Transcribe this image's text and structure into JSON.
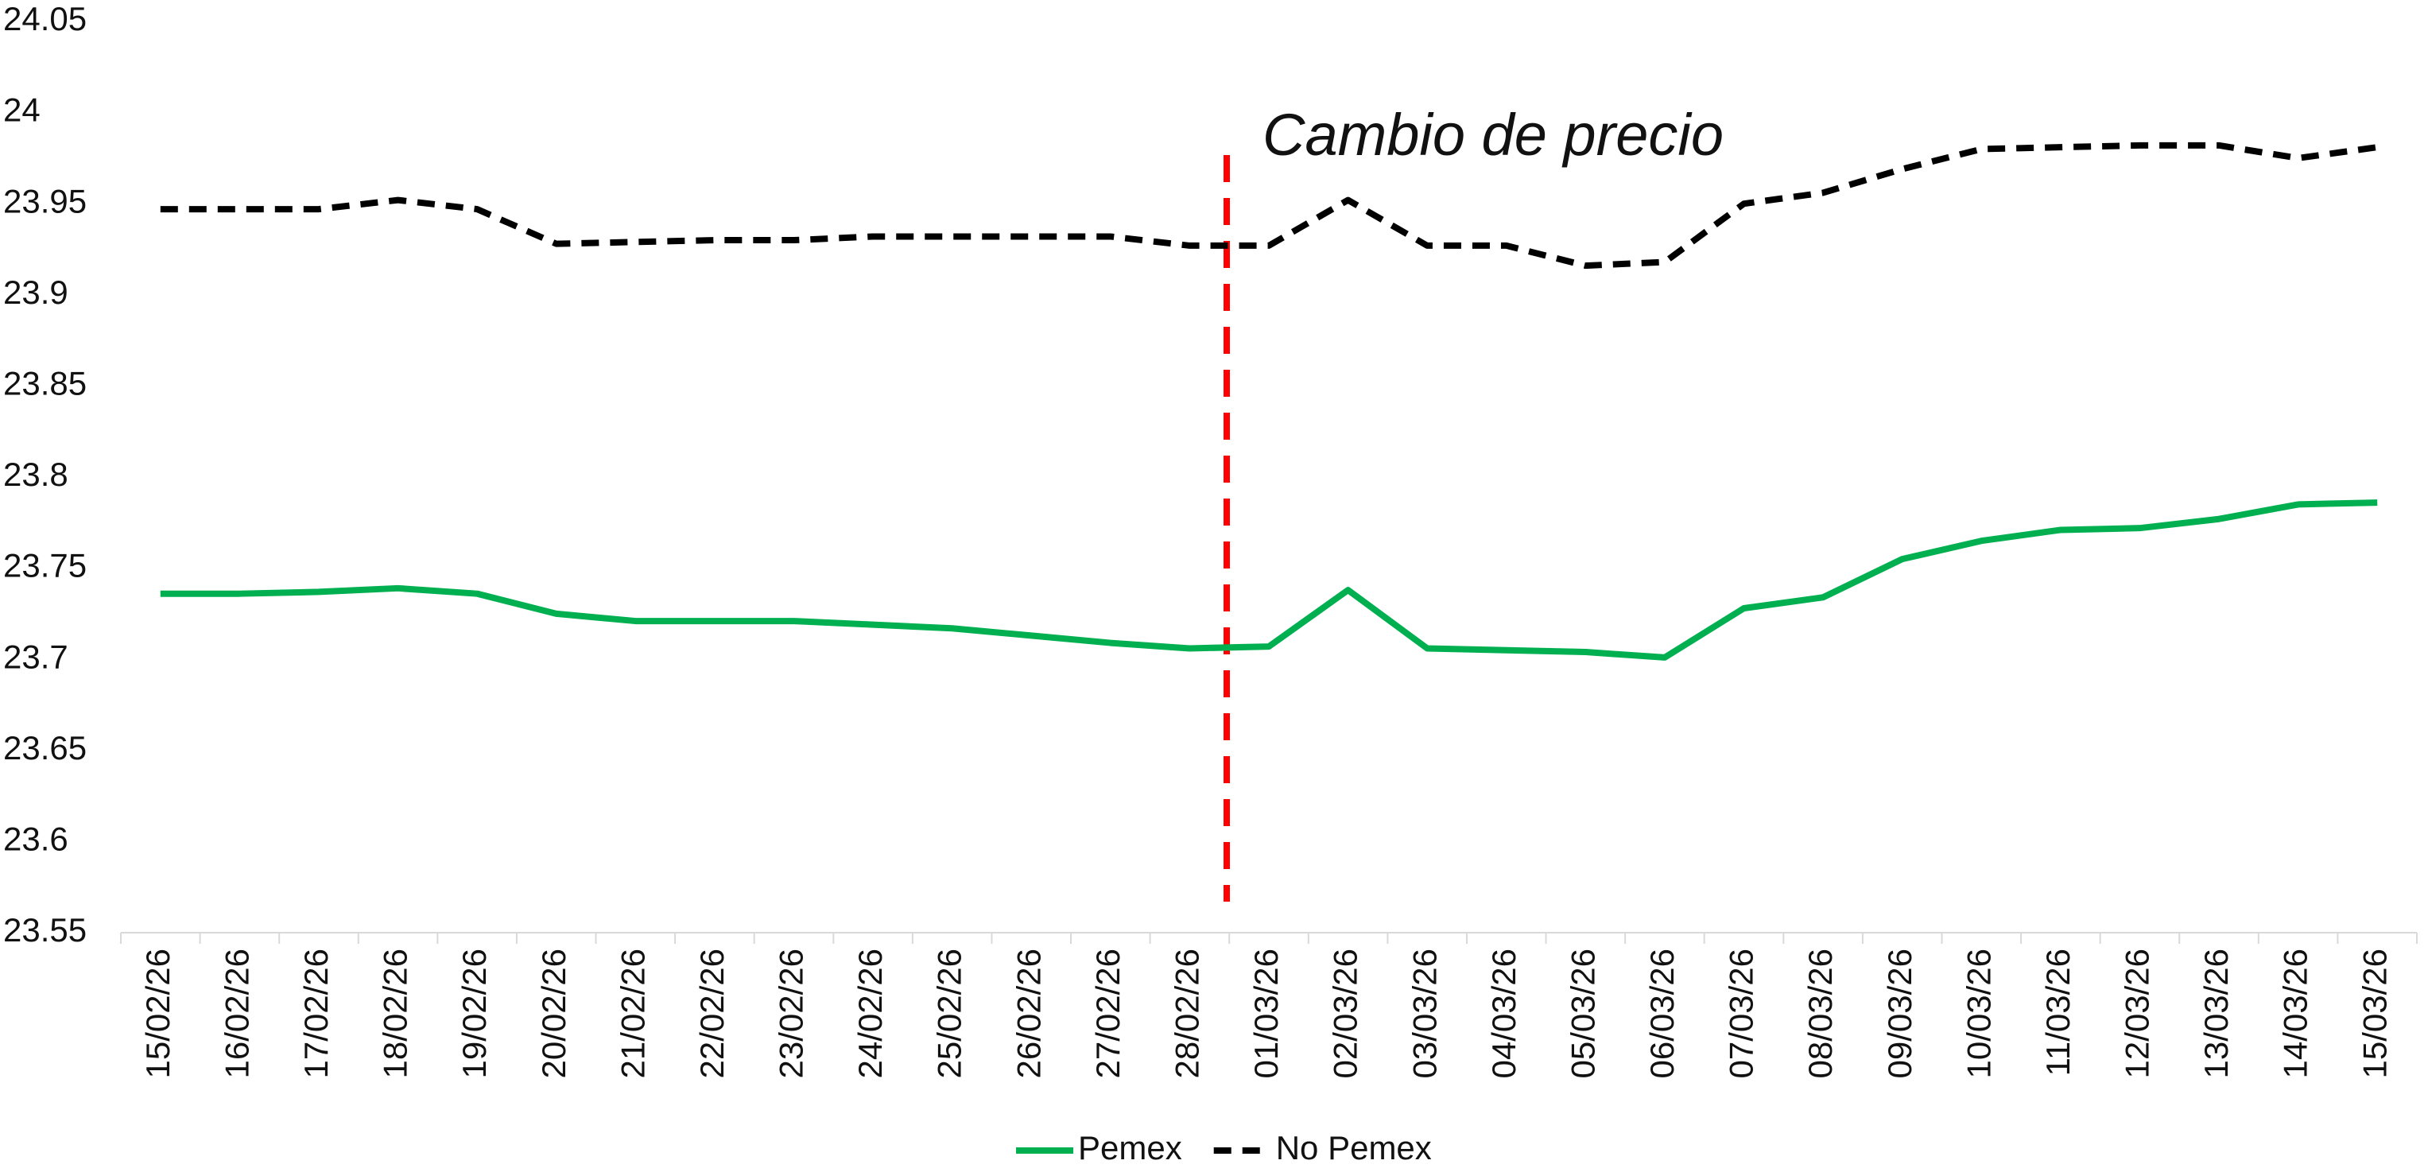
{
  "chart_data": {
    "type": "line",
    "annotation": "Cambio de precio",
    "categories": [
      "15/02/26",
      "16/02/26",
      "17/02/26",
      "18/02/26",
      "19/02/26",
      "20/02/26",
      "21/02/26",
      "22/02/26",
      "23/02/26",
      "24/02/26",
      "25/02/26",
      "26/02/26",
      "27/02/26",
      "28/02/26",
      "01/03/26",
      "02/03/26",
      "03/03/26",
      "04/03/26",
      "05/03/26",
      "06/03/26",
      "07/03/26",
      "08/03/26",
      "09/03/26",
      "10/03/26",
      "11/03/26",
      "12/03/26",
      "13/03/26",
      "14/03/26",
      "15/03/26"
    ],
    "series": [
      {
        "name": "Pemex",
        "color": "#00b050",
        "dash": "solid",
        "values": [
          23.736,
          23.736,
          23.737,
          23.739,
          23.736,
          23.725,
          23.721,
          23.721,
          23.721,
          23.719,
          23.717,
          23.713,
          23.709,
          23.706,
          23.707,
          23.738,
          23.706,
          23.705,
          23.704,
          23.701,
          23.728,
          23.734,
          23.755,
          23.765,
          23.771,
          23.772,
          23.777,
          23.785,
          23.786
        ]
      },
      {
        "name": "No Pemex",
        "color": "#000000",
        "dash": "dashed",
        "values": [
          23.947,
          23.947,
          23.947,
          23.952,
          23.947,
          23.928,
          23.929,
          23.93,
          23.93,
          23.932,
          23.932,
          23.932,
          23.932,
          23.927,
          23.927,
          23.952,
          23.927,
          23.927,
          23.916,
          23.918,
          23.95,
          23.956,
          23.969,
          23.98,
          23.981,
          23.982,
          23.982,
          23.975,
          23.981
        ]
      }
    ],
    "ylim": [
      23.55,
      24.05
    ],
    "yticks": [
      23.55,
      23.6,
      23.65,
      23.7,
      23.75,
      23.8,
      23.85,
      23.9,
      23.95,
      24,
      24.05
    ],
    "grid": false,
    "legend": "bottom"
  }
}
